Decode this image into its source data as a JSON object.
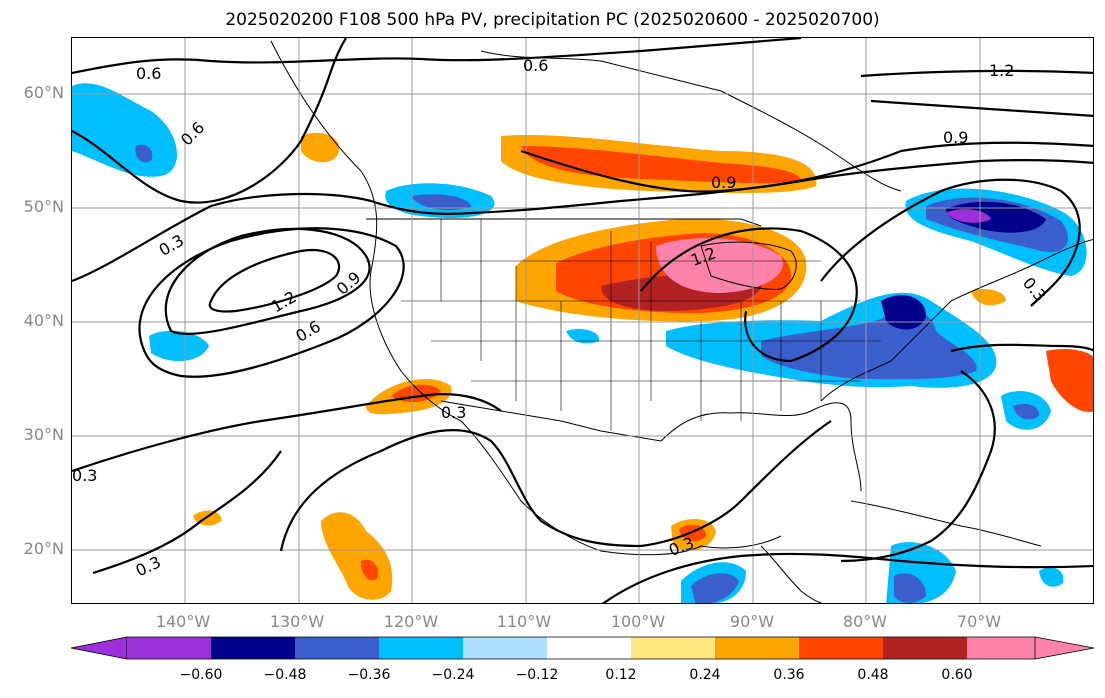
{
  "title": "2025020200 F108 500 hPa PV, precipitation PC (2025020600 - 2025020700)",
  "map": {
    "projection": "lat-lon",
    "lon_range": [
      -150,
      -60
    ],
    "lat_range": [
      15,
      65
    ],
    "lat_labels": [
      "60°N",
      "50°N",
      "40°N",
      "30°N",
      "20°N"
    ],
    "lon_labels": [
      "140°W",
      "130°W",
      "120°W",
      "110°W",
      "100°W",
      "90°W",
      "80°W",
      "70°W"
    ],
    "contour_labels": [
      "0.6",
      "0.6",
      "0.6",
      "0.3",
      "1.2",
      "0.9",
      "0.6",
      "0.9",
      "0.9",
      "1.2",
      "1.2",
      "0.3",
      "0.3",
      "0.3",
      "0.3",
      "0.3"
    ],
    "contour_color": "#000000",
    "grid": true
  },
  "colorbar": {
    "ticks": [
      "−0.60",
      "−0.48",
      "−0.36",
      "−0.24",
      "−0.12",
      "0.12",
      "0.24",
      "0.36",
      "0.48",
      "0.60"
    ],
    "colors": [
      "#9b30d9",
      "#00008b",
      "#3a5fcd",
      "#00bfff",
      "#b0e0ff",
      "#ffffff",
      "#ffe680",
      "#ffa500",
      "#ff4500",
      "#b22222",
      "#ff82ab"
    ]
  }
}
